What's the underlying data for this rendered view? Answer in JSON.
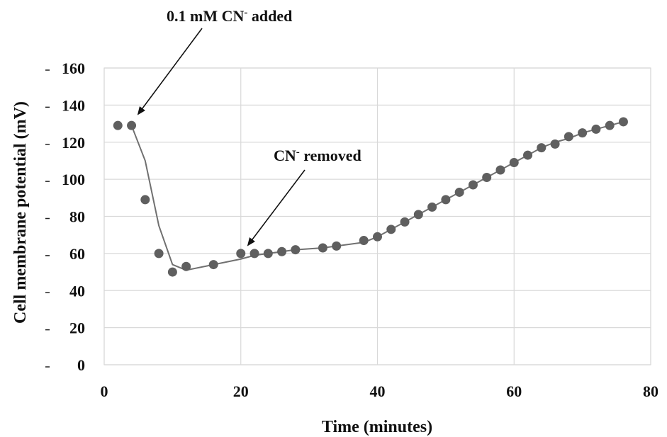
{
  "chart_data": {
    "type": "scatter",
    "title": "",
    "xlabel": "Time (minutes)",
    "ylabel": "Cell membrane potential (mV)",
    "xlim": [
      0,
      80
    ],
    "ylim": [
      0,
      160
    ],
    "x_ticks": [
      0,
      20,
      40,
      60,
      80
    ],
    "y_ticks": [
      0,
      20,
      40,
      60,
      80,
      100,
      120,
      140,
      160
    ],
    "grid": true,
    "legend": "none",
    "colors": {
      "points": "#5f5f5f",
      "line": "#707070",
      "grid": "#d9d9d9",
      "text": "#111111"
    },
    "series": [
      {
        "kind": "points",
        "x": [
          2,
          4,
          6,
          8,
          10,
          12,
          16,
          20,
          22,
          24,
          26,
          28,
          32,
          34,
          38,
          40,
          42,
          44,
          46,
          48,
          50,
          52,
          54,
          56,
          58,
          60,
          62,
          64,
          66,
          68,
          70,
          72,
          74,
          76
        ],
        "y": [
          129,
          129,
          89,
          60,
          50,
          53,
          54,
          60,
          60,
          60,
          61,
          62,
          63,
          64,
          67,
          69,
          73,
          77,
          81,
          85,
          89,
          93,
          97,
          101,
          105,
          109,
          113,
          117,
          119,
          123,
          125,
          127,
          129,
          131
        ]
      },
      {
        "kind": "line",
        "x": [
          4,
          6,
          8,
          10,
          12,
          16,
          20,
          22,
          24,
          26,
          28,
          32,
          34,
          38,
          40,
          42,
          44,
          46,
          48,
          50,
          52,
          54,
          56,
          58,
          60,
          62,
          64,
          66,
          68,
          70,
          72,
          74,
          76
        ],
        "y": [
          129,
          110,
          75,
          54,
          51,
          54,
          57,
          59,
          60,
          61,
          62,
          63,
          64,
          66,
          69,
          73,
          77,
          81,
          85,
          89,
          93,
          97,
          101,
          105,
          109,
          113,
          117,
          120,
          122,
          125,
          127,
          129,
          131
        ]
      }
    ],
    "annotations": [
      {
        "label": "0.1 mM CN",
        "sup": "-",
        "label_rest": " added",
        "target": [
          4,
          129
        ]
      },
      {
        "label": "CN",
        "sup": "-",
        "label_rest": " removed",
        "target": [
          21,
          62
        ]
      }
    ]
  }
}
